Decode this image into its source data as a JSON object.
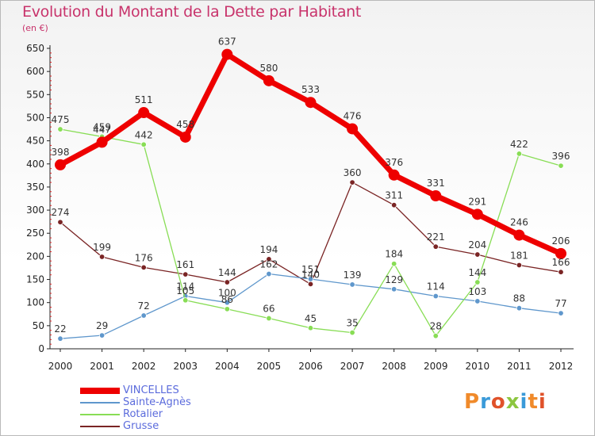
{
  "title": "Evolution du Montant de la Dette par Habitant",
  "unit_label": "(en €)",
  "logo_text": "Proxiti",
  "logo_colors": [
    "#f08a2a",
    "#3a9ad9",
    "#e0522a",
    "#8cc63f",
    "#3a9ad9",
    "#f08a2a",
    "#e0522a"
  ],
  "chart_data": {
    "type": "line",
    "x": [
      "2000",
      "2001",
      "2002",
      "2003",
      "2004",
      "2005",
      "2006",
      "2007",
      "2008",
      "2009",
      "2010",
      "2011",
      "2012"
    ],
    "ylim": [
      0,
      650
    ],
    "yticks": [
      0,
      50,
      100,
      150,
      200,
      250,
      300,
      350,
      400,
      450,
      500,
      550,
      600,
      650
    ],
    "grid": false,
    "legend_position": "bottom-left",
    "series": [
      {
        "name": "VINCELLES",
        "color": "#ee0000",
        "values": [
          398,
          447,
          511,
          458,
          637,
          580,
          533,
          476,
          376,
          331,
          291,
          246,
          206
        ],
        "labels": [
          "398",
          "447",
          "511",
          "458",
          "637",
          "580",
          "533",
          "476",
          "376",
          "331",
          "291",
          "246",
          "206"
        ]
      },
      {
        "name": "Sainte-Agnès",
        "color": "#5f97cc",
        "values": [
          22,
          29,
          72,
          114,
          100,
          162,
          151,
          139,
          129,
          114,
          103,
          88,
          77
        ],
        "labels": [
          "22",
          "29",
          "72",
          "114",
          "100",
          "162",
          "151",
          "139",
          "129",
          "114",
          "103",
          "88",
          "77"
        ]
      },
      {
        "name": "Rotalier",
        "color": "#88dd55",
        "values": [
          475,
          459,
          442,
          105,
          86,
          66,
          45,
          35,
          184,
          28,
          144,
          422,
          396
        ],
        "labels": [
          "475",
          "459",
          "442",
          "105",
          "86",
          "66",
          "45",
          "35",
          "184",
          "28",
          "144",
          "422",
          "396"
        ]
      },
      {
        "name": "Grusse",
        "color": "#7a2424",
        "values": [
          274,
          199,
          176,
          161,
          144,
          194,
          140,
          360,
          311,
          221,
          204,
          181,
          166
        ],
        "labels": [
          "274",
          "199",
          "176",
          "161",
          "144",
          "194",
          "140",
          "360",
          "311",
          "221",
          "204",
          "181",
          "166"
        ]
      }
    ]
  }
}
